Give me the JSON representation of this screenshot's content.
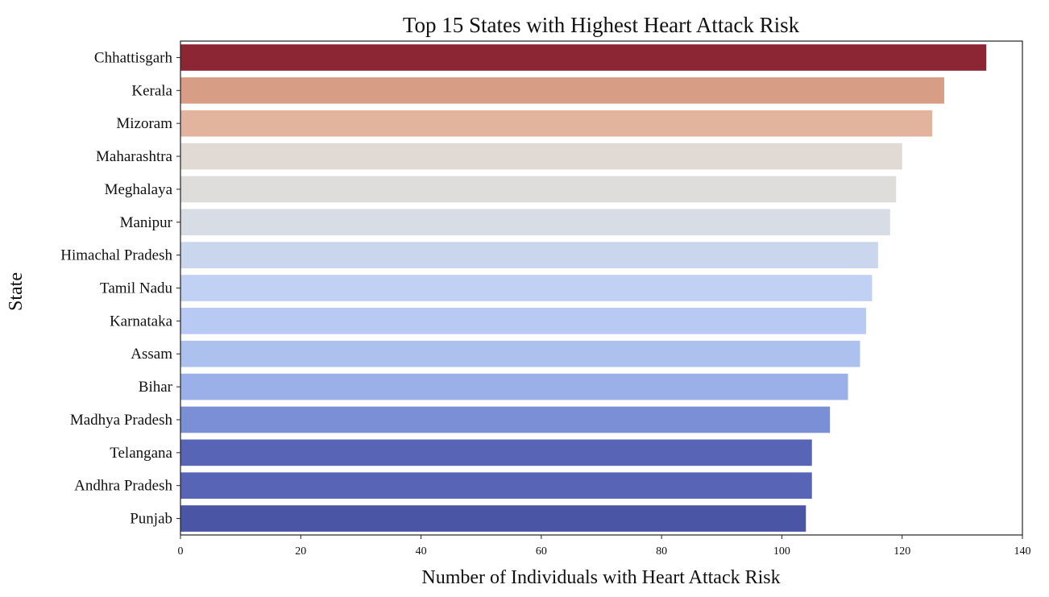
{
  "chart_data": {
    "type": "bar",
    "orientation": "horizontal",
    "title": "Top 15 States with Highest Heart Attack Risk",
    "xlabel": "Number of Individuals with Heart Attack Risk",
    "ylabel": "State",
    "xlim": [
      0,
      140
    ],
    "xticks": [
      0,
      20,
      40,
      60,
      80,
      100,
      120,
      140
    ],
    "xtick_labels": [
      "0",
      "20",
      "40",
      "60",
      "80",
      "100",
      "120",
      "140"
    ],
    "grid": false,
    "colormap": "coolwarm",
    "categories": [
      "Chhattisgarh",
      "Kerala",
      "Mizoram",
      "Maharashtra",
      "Meghalaya",
      "Manipur",
      "Himachal Pradesh",
      "Tamil Nadu",
      "Karnataka",
      "Assam",
      "Bihar",
      "Madhya Pradesh",
      "Telangana",
      "Andhra Pradesh",
      "Punjab"
    ],
    "values": [
      134,
      127,
      125,
      120,
      119,
      118,
      116,
      115,
      114,
      113,
      111,
      108,
      105,
      105,
      104
    ],
    "colors": [
      "#8c2634",
      "#d89d85",
      "#e2b49d",
      "#e0d9d4",
      "#dedddc",
      "#d8dce4",
      "#c9d6ee",
      "#c0d1f3",
      "#b8c9f3",
      "#adc1ef",
      "#9bb0e8",
      "#7b8fd6",
      "#5864b5",
      "#5864b5",
      "#4b55a6"
    ]
  }
}
